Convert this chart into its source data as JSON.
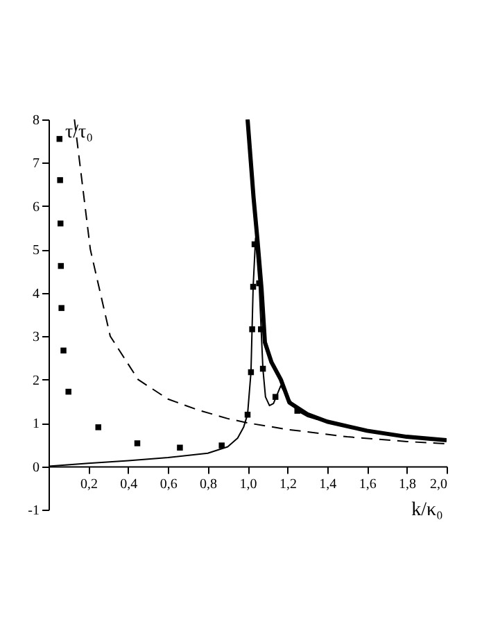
{
  "chart_data": {
    "type": "line",
    "xlabel": "k/κ₀",
    "ylabel": "τ/τ₀",
    "xlim": [
      0,
      2
    ],
    "ylim": [
      -1,
      8
    ],
    "xticks": [
      {
        "value": 0.2,
        "label": "0,2"
      },
      {
        "value": 0.4,
        "label": "0,4"
      },
      {
        "value": 0.6,
        "label": "0,6"
      },
      {
        "value": 0.8,
        "label": "0,8"
      },
      {
        "value": 1.0,
        "label": "1,0"
      },
      {
        "value": 1.2,
        "label": "1,2"
      },
      {
        "value": 1.4,
        "label": "1,4"
      },
      {
        "value": 1.6,
        "label": "1,6"
      },
      {
        "value": 1.8,
        "label": "1,8"
      },
      {
        "value": 2.0,
        "label": "2,0"
      }
    ],
    "yticks": [
      -1,
      0,
      1,
      2,
      3,
      4,
      5,
      6,
      7,
      8
    ],
    "grid": false,
    "series": [
      {
        "line_style": "dashed",
        "color": "#000000",
        "x": [
          0.13,
          0.21,
          0.31,
          0.45,
          0.6,
          0.75,
          0.9,
          1.0,
          1.2,
          1.5,
          1.8,
          2.0
        ],
        "values": [
          8,
          5,
          3,
          2,
          1.55,
          1.3,
          1.1,
          1.0,
          0.85,
          0.68,
          0.57,
          0.52
        ]
      },
      {
        "line_style": "solid",
        "color": "#000000",
        "x": [
          0,
          0.2,
          0.4,
          0.6,
          0.8,
          0.9,
          0.95,
          0.98,
          1.0,
          1.017,
          1.028,
          1.04,
          1.058,
          1.077,
          1.09,
          1.11,
          1.13,
          1.167,
          1.2,
          1.25,
          1.3,
          1.35,
          1.4,
          1.5,
          1.6,
          1.8,
          2.0
        ],
        "values": [
          0,
          0.07,
          0.13,
          0.2,
          0.3,
          0.45,
          0.65,
          0.9,
          1.2,
          2.17,
          4.14,
          5.26,
          4.22,
          2.25,
          1.6,
          1.4,
          1.45,
          1.86,
          1.6,
          1.28,
          1.15,
          1.08,
          1.05,
          0.93,
          0.82,
          0.66,
          0.6
        ]
      },
      {
        "line_style": "solid",
        "color": "#000000",
        "x": [
          1.0,
          1.03,
          1.05,
          1.07,
          1.087,
          1.12,
          1.167,
          1.21,
          1.3,
          1.4,
          1.6,
          1.8,
          2.0
        ],
        "values": [
          8,
          6.2,
          5.2,
          4.1,
          2.86,
          2.4,
          2.0,
          1.47,
          1.2,
          1.03,
          0.82,
          0.68,
          0.6
        ]
      },
      {
        "type": "scatter",
        "marker": "square",
        "color": "#000000",
        "x": [
          0.055,
          0.058,
          0.06,
          0.062,
          0.065,
          0.075,
          0.1,
          0.25,
          0.446,
          0.66,
          0.87,
          1.0,
          1.017,
          1.023,
          1.028,
          1.035,
          1.058,
          1.067,
          1.077,
          1.14,
          1.25
        ],
        "values": [
          7.55,
          6.6,
          5.6,
          4.62,
          3.65,
          2.67,
          1.72,
          0.9,
          0.53,
          0.43,
          0.48,
          1.19,
          2.17,
          3.16,
          4.14,
          5.12,
          4.22,
          3.16,
          2.25,
          1.6,
          1.28
        ]
      }
    ]
  }
}
